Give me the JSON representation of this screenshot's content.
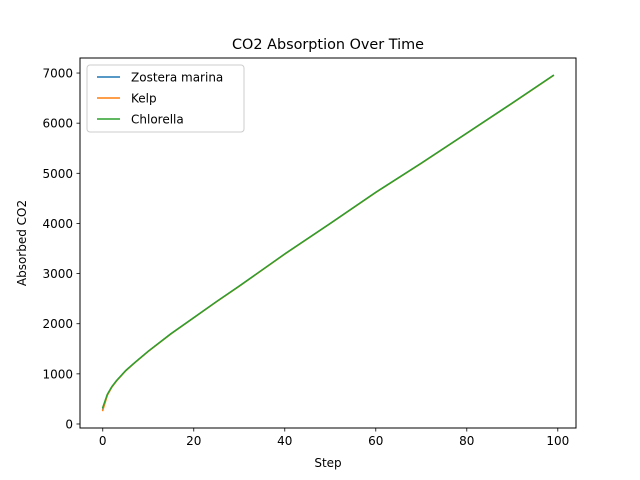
{
  "chart_data": {
    "type": "line",
    "title": "CO2 Absorption Over Time",
    "xlabel": "Step",
    "ylabel": "Absorbed CO2",
    "xlim": [
      -5,
      104
    ],
    "ylim": [
      -80,
      7300
    ],
    "x_ticks": [
      0,
      20,
      40,
      60,
      80,
      100
    ],
    "x_tick_labels": [
      "0",
      "20",
      "40",
      "60",
      "80",
      "100"
    ],
    "y_ticks": [
      0,
      1000,
      2000,
      3000,
      4000,
      5000,
      6000,
      7000
    ],
    "y_tick_labels": [
      "0",
      "1000",
      "2000",
      "3000",
      "4000",
      "5000",
      "6000",
      "7000"
    ],
    "grid": false,
    "legend_position": "top-left",
    "x": [
      0,
      1,
      2,
      3,
      5,
      7,
      10,
      15,
      20,
      25,
      30,
      40,
      50,
      60,
      70,
      80,
      90,
      99
    ],
    "series": [
      {
        "name": "Zostera marina",
        "color": "#1f77b4",
        "values": [
          300,
          580,
          740,
          860,
          1060,
          1220,
          1450,
          1800,
          2120,
          2440,
          2750,
          3390,
          4000,
          4620,
          5200,
          5800,
          6400,
          6950
        ]
      },
      {
        "name": "Kelp",
        "color": "#ff7f0e",
        "values": [
          270,
          570,
          735,
          855,
          1055,
          1218,
          1448,
          1798,
          2118,
          2438,
          2748,
          3388,
          3998,
          4618,
          5198,
          5798,
          6398,
          6948
        ]
      },
      {
        "name": "Chlorella",
        "color": "#2ca02c",
        "values": [
          330,
          590,
          745,
          862,
          1062,
          1222,
          1452,
          1802,
          2122,
          2442,
          2752,
          3392,
          4002,
          4622,
          5202,
          5802,
          6402,
          6952
        ]
      }
    ]
  }
}
